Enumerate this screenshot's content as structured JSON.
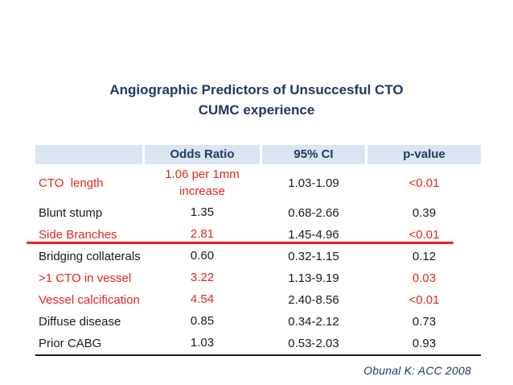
{
  "slide": {
    "title_line1": "Angiographic Predictors of Unsuccesful CTO",
    "title_line2": "CUMC experience",
    "attribution": "Obunal K: ACC 2008"
  },
  "table": {
    "headers": [
      "",
      "Odds Ratio",
      "95% CI",
      "p-value"
    ],
    "rows": [
      {
        "label": "CTO  length",
        "odds_ratio": "1.06 per 1mm\nincrease",
        "ci": "1.03-1.09",
        "p_value": "<0.01",
        "highlight": true
      },
      {
        "label": "Blunt stump",
        "odds_ratio": "1.35",
        "ci": "0.68-2.66",
        "p_value": "0.39",
        "highlight": false
      },
      {
        "label": "Side Branches",
        "odds_ratio": "2.81",
        "ci": "1.45-4.96",
        "p_value": "<0.01",
        "highlight": true
      },
      {
        "label": "Bridging collaterals",
        "odds_ratio": "0.60",
        "ci": "0.32-1.15",
        "p_value": "0.12",
        "highlight": false
      },
      {
        "label": ">1 CTO in vessel",
        "odds_ratio": "3.22",
        "ci": "1.13-9.19",
        "p_value": "0.03",
        "highlight": true
      },
      {
        "label": "Vessel calcification",
        "odds_ratio": "4.54",
        "ci": "2.40-8.56",
        "p_value": "<0.01",
        "highlight": true
      },
      {
        "label": "Diffuse disease",
        "odds_ratio": "0.85",
        "ci": "0.34-2.12",
        "p_value": "0.73",
        "highlight": false
      },
      {
        "label": "Prior CABG",
        "odds_ratio": "1.03",
        "ci": "0.53-2.03",
        "p_value": "0.93",
        "highlight": false
      }
    ]
  },
  "colors": {
    "title_navy": "#1f3864",
    "header_background": "#dbe5f1",
    "highlight_red": "#e02620",
    "body_text": "#1a1a1a"
  }
}
